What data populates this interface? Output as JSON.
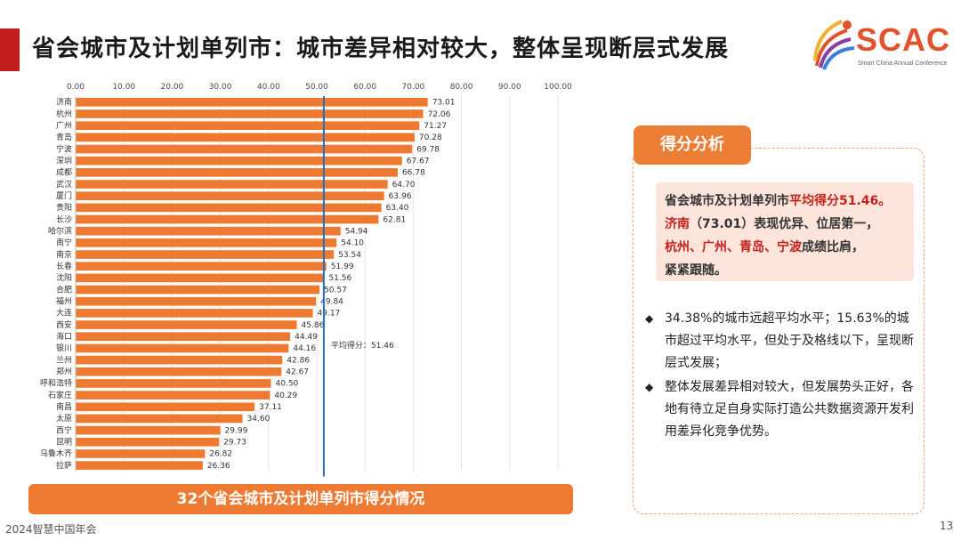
{
  "page": {
    "title": "省会城市及计划单列市：城市差异相对较大，整体呈现断层式发展",
    "page_number": "13",
    "footer": "2024智慧中国年会"
  },
  "logo": {
    "text": "SCAC",
    "subtitle": "Smart China Annual Conference"
  },
  "chart_caption": "32个省会城市及计划单列市得分情况",
  "chart_data": {
    "type": "bar",
    "orientation": "horizontal",
    "categories": [
      "济南",
      "杭州",
      "广州",
      "青岛",
      "宁波",
      "深圳",
      "成都",
      "武汉",
      "厦门",
      "贵阳",
      "长沙",
      "哈尔滨",
      "南宁",
      "南京",
      "长春",
      "沈阳",
      "合肥",
      "福州",
      "大连",
      "西安",
      "海口",
      "银川",
      "兰州",
      "郑州",
      "呼和浩特",
      "石家庄",
      "南昌",
      "太原",
      "西宁",
      "昆明",
      "乌鲁木齐",
      "拉萨"
    ],
    "values": [
      73.01,
      72.06,
      71.27,
      70.28,
      69.78,
      67.67,
      66.78,
      64.7,
      63.96,
      63.4,
      62.81,
      54.94,
      54.1,
      53.54,
      51.99,
      51.56,
      50.57,
      49.84,
      49.17,
      45.86,
      44.49,
      44.16,
      42.86,
      42.67,
      40.5,
      40.29,
      37.11,
      34.6,
      29.99,
      29.73,
      26.82,
      26.36
    ],
    "value_labels": [
      "73.01",
      "72.06",
      "71.27",
      "70.28",
      "69.78",
      "67.67",
      "66.78",
      "64.70",
      "63.96",
      "63.40",
      "62.81",
      "54.94",
      "54.10",
      "53.54",
      "51.99",
      "51.56",
      "50.57",
      "49.84",
      "49.17",
      "45.86",
      "44.49",
      "44.16",
      "42.86",
      "42.67",
      "40.50",
      "40.29",
      "37.11",
      "34.60",
      "29.99",
      "29.73",
      "26.82",
      "26.36"
    ],
    "xlim": [
      0,
      100
    ],
    "x_ticks": [
      "0.00",
      "10.00",
      "20.00",
      "30.00",
      "40.00",
      "50.00",
      "60.00",
      "70.00",
      "80.00",
      "90.00",
      "100.00"
    ],
    "x_axis_position": "top",
    "grid": true,
    "reference_line": {
      "value": 51.46,
      "label": "平均得分：51.46",
      "color": "#1f6fc5"
    },
    "bar_color": "#ee7a32"
  },
  "panel": {
    "tag": "得分分析",
    "summary": {
      "line1_a": "省会城市及计划单列市",
      "line1_b": "平均得分51.46。",
      "line2_a": "济南",
      "line2_b": "（73.01）表现优异、位居第一，",
      "line3_a": "杭州、广州、青岛、宁波",
      "line3_b": "成绩比肩，",
      "line4": "紧紧跟随。"
    },
    "bullets": [
      "34.38%的城市远超平均水平；15.63%的城市超过平均水平，但处于及格线以下，呈现断层式发展；",
      "整体发展差异相对较大，但发展势头正好，各地有待立足自身实际打造公共数据资源开发利用差异化竞争优势。"
    ]
  },
  "colors": {
    "accent": "#c21f1f",
    "orange": "#ee7a32",
    "avg_line": "#1f6fc5"
  }
}
